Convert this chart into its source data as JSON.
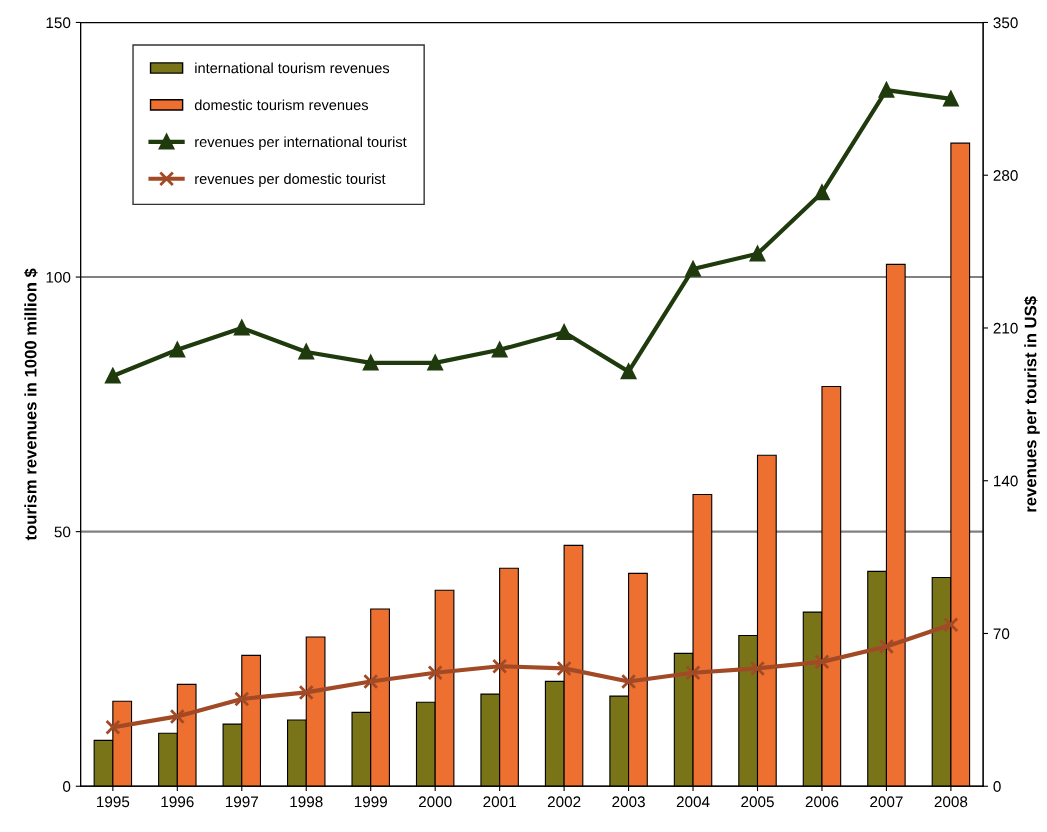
{
  "chart_data": {
    "type": "bar",
    "ylabel": "tourism revenues in 1000 million $",
    "y2label": "revenues per tourist in US$",
    "categories": [
      "1995",
      "1996",
      "1997",
      "1998",
      "1999",
      "2000",
      "2001",
      "2002",
      "2003",
      "2004",
      "2005",
      "2006",
      "2007",
      "2008"
    ],
    "series": [
      {
        "name": "international tourism revenues",
        "color": "#7a7418",
        "values": [
          9.0,
          10.4,
          12.2,
          13.0,
          14.5,
          16.5,
          18.1,
          20.6,
          17.7,
          26.1,
          29.6,
          34.2,
          42.2,
          41.0
        ]
      },
      {
        "name": "domestic tourism revenues",
        "color": "#ee7030",
        "values": [
          16.7,
          20.0,
          25.7,
          29.3,
          34.8,
          38.5,
          42.8,
          47.3,
          41.8,
          57.3,
          65.0,
          78.5,
          102.5,
          126.3
        ]
      },
      {
        "name": "revenues per international tourist",
        "type": "line",
        "axis": "y2",
        "marker": "triangle",
        "color": "#1f3a0c",
        "values": [
          188,
          200,
          210,
          199,
          194,
          194,
          200,
          208,
          190,
          237,
          244,
          272,
          319,
          315
        ]
      },
      {
        "name": "revenues per domestic tourist",
        "type": "line",
        "axis": "y2",
        "marker": "cross",
        "color": "#a24a26",
        "values": [
          27,
          32,
          40,
          43,
          48,
          52,
          55,
          54,
          48,
          52,
          54,
          57,
          64,
          74
        ]
      }
    ],
    "ylim": [
      0,
      150
    ],
    "yticks": [
      0,
      50,
      100,
      150
    ],
    "y2lim": [
      0,
      350
    ],
    "y2ticks": [
      0,
      70,
      140,
      210,
      280,
      350
    ],
    "grid": "y",
    "legend": "top left",
    "line_style": "solid"
  }
}
